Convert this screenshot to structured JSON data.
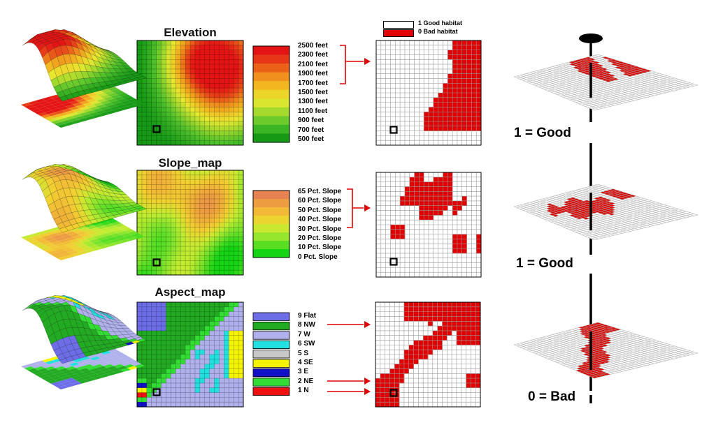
{
  "titles": {
    "elevation": "Elevation",
    "slope": "Slope_map",
    "aspect": "Aspect_map"
  },
  "habitat_key": {
    "good": "1 Good habitat",
    "bad": "0 Bad habitat"
  },
  "elevation_legend": [
    "2500 feet",
    "2300 feet",
    "2100 feet",
    "1900 feet",
    "1700 feet",
    "1500 feet",
    "1300 feet",
    "1100 feet",
    "900 feet",
    "700 feet",
    "500 feet"
  ],
  "slope_legend": [
    "65 Pct. Slope",
    "60 Pct. Slope",
    "50 Pct. Slope",
    "40 Pct. Slope",
    "30 Pct. Slope",
    "20 Pct. Slope",
    "10 Pct. Slope",
    "0 Pct. Slope"
  ],
  "aspect_legend": [
    {
      "label": "9 Flat",
      "color": "#6d6de8"
    },
    {
      "label": "8 NW",
      "color": "#22aa22"
    },
    {
      "label": "7 W",
      "color": "#b0b0ec"
    },
    {
      "label": "6 SW",
      "color": "#22e0e0"
    },
    {
      "label": "5 S",
      "color": "#c8c8c8"
    },
    {
      "label": "4 SE",
      "color": "#f5f500"
    },
    {
      "label": "3 E",
      "color": "#1010c8"
    },
    {
      "label": "2 NE",
      "color": "#33dd33"
    },
    {
      "label": "1 N",
      "color": "#ee1111"
    }
  ],
  "stack_labels": {
    "first": "1 = Good",
    "second": "1 = Good",
    "third": "0 = Bad"
  },
  "colors": {
    "habitat_bad": "#e00000",
    "arrow": "#e00000"
  }
}
